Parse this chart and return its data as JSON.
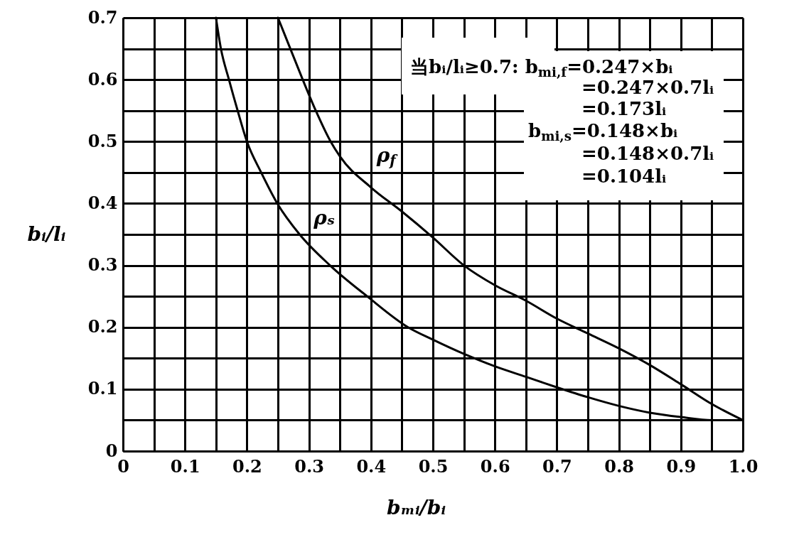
{
  "chart_data": {
    "type": "line",
    "xlabel": "bₘᵢ/bᵢ",
    "ylabel": "bᵢ/lᵢ",
    "series": [
      {
        "name": "ρ$_{f}$",
        "color": "#000000",
        "x": [
          0.25,
          0.27,
          0.29,
          0.311,
          0.335,
          0.35,
          0.4,
          0.45,
          0.5,
          0.55,
          0.6,
          0.65,
          0.7,
          0.75,
          0.8,
          0.85,
          0.9,
          0.95,
          1.0
        ],
        "values": [
          0.7,
          0.65,
          0.6,
          0.55,
          0.5,
          0.476,
          0.426,
          0.387,
          0.345,
          0.3,
          0.268,
          0.243,
          0.214,
          0.19,
          0.166,
          0.139,
          0.108,
          0.076,
          0.05
        ]
      },
      {
        "name": "ρₛ",
        "color": "#000000",
        "x": [
          0.15,
          0.158,
          0.171,
          0.185,
          0.2,
          0.223,
          0.249,
          0.285,
          0.334,
          0.394,
          0.46,
          0.5,
          0.55,
          0.6,
          0.65,
          0.7,
          0.75,
          0.8,
          0.85,
          0.9,
          0.95,
          1.0
        ],
        "values": [
          0.7,
          0.65,
          0.6,
          0.55,
          0.5,
          0.45,
          0.4,
          0.35,
          0.3,
          0.25,
          0.2,
          0.18,
          0.157,
          0.137,
          0.12,
          0.103,
          0.087,
          0.073,
          0.062,
          0.055,
          0.05,
          0.05
        ]
      }
    ],
    "xlim": [
      0,
      1
    ],
    "ylim": [
      0,
      0.7
    ],
    "xticks": [
      0,
      {
        "value": 0.05,
        "label": null
      },
      0.1,
      {
        "value": 0.15,
        "label": null
      },
      0.2,
      {
        "value": 0.25,
        "label": null
      },
      0.3,
      {
        "value": 0.35,
        "label": null
      },
      0.4,
      {
        "value": 0.45,
        "label": null
      },
      0.5,
      {
        "value": 0.55,
        "label": null
      },
      0.6,
      {
        "value": 0.65,
        "label": null
      },
      0.7,
      {
        "value": 0.75,
        "label": null
      },
      0.8,
      {
        "value": 0.85,
        "label": null
      },
      0.9,
      {
        "value": 0.95,
        "label": null
      },
      {
        "value": 1,
        "label": "1.0"
      }
    ],
    "yticks": [
      0,
      {
        "value": 0.05,
        "label": null
      },
      0.1,
      {
        "value": 0.15,
        "label": null
      },
      0.2,
      {
        "value": 0.25,
        "label": null
      },
      0.3,
      {
        "value": 0.35,
        "label": null
      },
      0.4,
      {
        "value": 0.45,
        "label": null
      },
      0.5,
      {
        "value": 0.55,
        "label": null
      },
      0.6,
      {
        "value": 0.65,
        "label": null
      },
      0.7
    ],
    "grid": true,
    "legend": false,
    "line_style": "solid",
    "annotations": [
      "当bᵢ/lᵢ≥0.7: b$_{mi,f}$=0.247×bᵢ",
      "=0.247×0.7lᵢ",
      "=0.173lᵢ",
      "b$_{mi,s}$=0.148×bᵢ",
      "=0.148×0.7lᵢ",
      "=0.104lᵢ"
    ]
  }
}
